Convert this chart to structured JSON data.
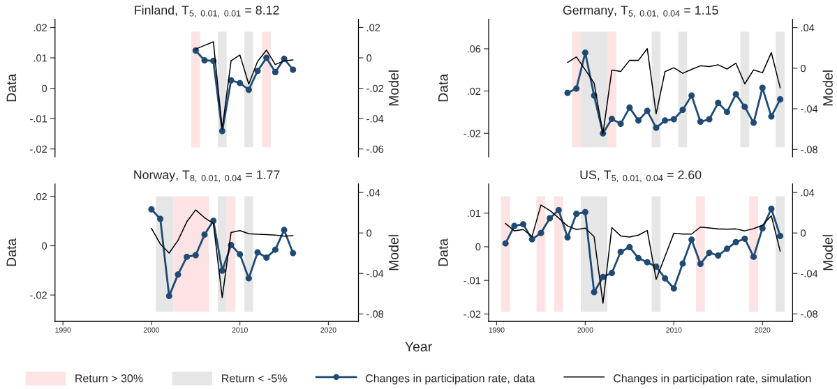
{
  "chart_data": [
    {
      "type": "line",
      "title": "Finland, T$_{5, 0.01, 0.01}$ = 8.12",
      "ylabel": "Data",
      "y2label": "Model",
      "tick_labels": "y",
      "legend": "bottom",
      "x": [
        2005,
        2006,
        2007,
        2008,
        2009,
        2010,
        2011,
        2012,
        2013,
        2014,
        2015,
        2016
      ],
      "series": [
        {
          "name": "Changes in participation rate, data",
          "color": "#1f4a73",
          "marker": "circle",
          "values": [
            0.0124,
            0.0092,
            0.009,
            -0.0141,
            0.0026,
            0.0017,
            -0.0005,
            0.0057,
            0.01,
            0.0053,
            0.0097,
            0.0061
          ]
        },
        {
          "name": "Changes in participation rate, simulation",
          "color": "#000000",
          "marker": "none",
          "axis": "y2",
          "values": [
            0.0058,
            0.0082,
            0.0106,
            -0.0469,
            -0.0019,
            0.0019,
            -0.0173,
            -0.0023,
            0.0051,
            -0.0044,
            -0.0019,
            -0.0014
          ]
        }
      ],
      "xlim": [
        1989.1,
        2023.4
      ],
      "xticks": [
        1990,
        2000,
        2010,
        2020
      ],
      "ylim": [
        -0.0226,
        0.0227
      ],
      "yticks": [
        {
          "value": 0.02,
          "label": ".02"
        },
        {
          "value": 0.01,
          "label": ".01"
        },
        0,
        {
          "value": -0.01,
          "label": "-.01"
        },
        {
          "value": -0.02,
          "label": "-.02"
        }
      ],
      "y2lim": [
        -0.0652,
        0.0254
      ],
      "y2ticks": [
        {
          "value": 0.02,
          "label": ".02"
        },
        0,
        {
          "value": -0.02,
          "label": "-.02"
        },
        {
          "value": -0.04,
          "label": "-.04"
        },
        {
          "value": -0.06,
          "label": "-.06"
        }
      ],
      "bands": [
        {
          "axis": "x",
          "from": 2004.5,
          "to": 2005.5,
          "label": "Return > 30%",
          "color": "#fde3e3"
        },
        {
          "axis": "x",
          "from": 2007.5,
          "to": 2008.5,
          "label": "Return < -5%",
          "color": "#e6e6e6"
        },
        {
          "axis": "x",
          "from": 2010.5,
          "to": 2011.5,
          "color": "#e6e6e6"
        },
        {
          "axis": "x",
          "from": 2012.5,
          "to": 2013.5,
          "color": "#fde3e3"
        }
      ]
    },
    {
      "type": "line",
      "title": "Germany, T$_{5, 0.01, 0.04}$ = 1.15",
      "ylabel": "Data",
      "y2label": "Model",
      "tick_labels": "y",
      "x": [
        1998,
        1999,
        2000,
        2001,
        2002,
        2003,
        2004,
        2005,
        2006,
        2007,
        2008,
        2009,
        2010,
        2011,
        2012,
        2013,
        2014,
        2015,
        2016,
        2017,
        2018,
        2019,
        2020,
        2021,
        2022
      ],
      "series": [
        {
          "color": "#1f4a73",
          "marker": "circle",
          "values": [
            0.0182,
            0.0223,
            0.0563,
            0.0157,
            -0.0201,
            -0.0064,
            -0.011,
            0.0043,
            -0.0079,
            0.0012,
            -0.0148,
            -0.0079,
            -0.0067,
            0.0022,
            0.0157,
            -0.009,
            -0.0067,
            0.0088,
            0.0002,
            0.017,
            0.005,
            -0.01,
            0.023,
            -0.0041,
            0.0121
          ]
        },
        {
          "color": "#000000",
          "marker": "none",
          "axis": "y2",
          "values": [
            0.0056,
            0.0111,
            -0.0016,
            -0.0146,
            -0.0644,
            -0.0019,
            -0.0032,
            0.0077,
            0.0077,
            0.0193,
            -0.045,
            -0.0034,
            0.0005,
            -0.005,
            -0.0011,
            0.0024,
            0.0016,
            0.0034,
            -0.0008,
            0.005,
            -0.0154,
            -0.0016,
            -0.0045,
            0.0154,
            -0.0193
          ]
        }
      ],
      "xlim": [
        1989.1,
        2023.4
      ],
      "xticks": [
        1990,
        2000,
        2010,
        2020
      ],
      "ylim": [
        -0.0423,
        0.0879
      ],
      "yticks": [
        {
          "value": 0.06,
          "label": ".06"
        },
        {
          "value": 0.02,
          "label": ".02"
        },
        {
          "value": -0.02,
          "label": "-.02"
        }
      ],
      "y2lim": [
        -0.0874,
        0.0482
      ],
      "y2ticks": [
        {
          "value": 0.04,
          "label": ".04"
        },
        0,
        {
          "value": -0.04,
          "label": "-.04"
        },
        {
          "value": -0.08,
          "label": "-.08"
        }
      ],
      "bands": [
        {
          "axis": "x",
          "from": 1998.5,
          "to": 1999.5,
          "color": "#fde3e3"
        },
        {
          "axis": "x",
          "from": 1999.5,
          "to": 2002.5,
          "color": "#e6e6e6"
        },
        {
          "axis": "x",
          "from": 2002.5,
          "to": 2003.5,
          "color": "#fde3e3"
        },
        {
          "axis": "x",
          "from": 2007.5,
          "to": 2008.5,
          "color": "#e6e6e6"
        },
        {
          "axis": "x",
          "from": 2010.5,
          "to": 2011.5,
          "color": "#e6e6e6"
        },
        {
          "axis": "x",
          "from": 2017.5,
          "to": 2018.5,
          "color": "#e6e6e6"
        },
        {
          "axis": "x",
          "from": 2021.5,
          "to": 2022.5,
          "color": "#e6e6e6"
        }
      ]
    },
    {
      "type": "line",
      "title": "Norway, T$_{8, 0.01, 0.04}$ = 1.77",
      "ylabel": "Data",
      "y2label": "Model",
      "x": [
        2000,
        2001,
        2002,
        2003,
        2004,
        2005,
        2006,
        2007,
        2008,
        2009,
        2010,
        2011,
        2012,
        2013,
        2014,
        2015,
        2016
      ],
      "series": [
        {
          "color": "#1f4a73",
          "marker": "circle",
          "values": [
            0.0148,
            0.0109,
            -0.0204,
            -0.0117,
            -0.0045,
            -0.0038,
            0.0045,
            0.0101,
            -0.0101,
            0.0003,
            -0.0035,
            -0.0132,
            -0.0027,
            -0.0048,
            -0.0016,
            0.0064,
            -0.003
          ]
        },
        {
          "color": "#000000",
          "marker": "none",
          "axis": "y2",
          "values": [
            0.0045,
            -0.0109,
            -0.0199,
            -0.0074,
            0.0111,
            0.0228,
            0.0151,
            0.0093,
            -0.0639,
            0.0005,
            0.0024,
            -0.0008,
            -0.0013,
            -0.0016,
            -0.0021,
            -0.0032,
            -0.0026
          ]
        }
      ],
      "xlim": [
        1989.1,
        2023.4
      ],
      "xticks": [
        1990,
        2000,
        2010,
        2020
      ],
      "ylim": [
        -0.0307,
        0.0251
      ],
      "yticks": [
        {
          "value": 0.02,
          "label": ".02"
        },
        0,
        {
          "value": -0.02,
          "label": "-.02"
        }
      ],
      "y2lim": [
        -0.0874,
        0.0485
      ],
      "y2ticks": [
        {
          "value": 0.04,
          "label": ".04"
        },
        0,
        {
          "value": -0.04,
          "label": "-.04"
        },
        {
          "value": -0.08,
          "label": "-.08"
        }
      ],
      "bands": [
        {
          "axis": "x",
          "from": 2000.5,
          "to": 2002.5,
          "color": "#e6e6e6"
        },
        {
          "axis": "x",
          "from": 2002.5,
          "to": 2006.5,
          "color": "#fde3e3"
        },
        {
          "axis": "x",
          "from": 2007.5,
          "to": 2008.5,
          "color": "#e6e6e6"
        },
        {
          "axis": "x",
          "from": 2008.5,
          "to": 2009.5,
          "color": "#fde3e3"
        },
        {
          "axis": "x",
          "from": 2010.5,
          "to": 2011.5,
          "color": "#e6e6e6"
        }
      ]
    },
    {
      "type": "line",
      "title": "US, T$_{5, 0.01, 0.04}$ = 2.60",
      "ylabel": "Data",
      "y2label": "Model",
      "xlabel": "Year",
      "x": [
        1991,
        1992,
        1993,
        1994,
        1995,
        1996,
        1997,
        1998,
        1999,
        2000,
        2001,
        2002,
        2003,
        2004,
        2005,
        2006,
        2007,
        2008,
        2009,
        2010,
        2011,
        2012,
        2013,
        2014,
        2015,
        2016,
        2017,
        2018,
        2019,
        2020,
        2021,
        2022
      ],
      "series": [
        {
          "color": "#1f4a73",
          "marker": "circle",
          "values": [
            0.001,
            0.0062,
            0.0067,
            0.0022,
            0.0041,
            0.0085,
            0.0109,
            0.0028,
            0.0098,
            0.0103,
            -0.0135,
            -0.009,
            -0.0078,
            -0.0015,
            -0.0001,
            -0.0034,
            -0.0046,
            -0.0059,
            -0.0094,
            -0.0124,
            -0.005,
            0.0021,
            -0.0051,
            -0.0018,
            -0.0026,
            -0.0006,
            0.0014,
            0.0024,
            -0.003,
            0.0055,
            0.0113,
            0.0032
          ]
        },
        {
          "color": "#000000",
          "marker": "none",
          "axis": "y2",
          "values": [
            0.0093,
            0.0021,
            0.0034,
            -0.0034,
            0.0276,
            0.0223,
            0.0148,
            0.0069,
            0.0034,
            0.0048,
            -0.0037,
            -0.0694,
            0.0053,
            -0.0029,
            -0.004,
            -0.0021,
            0.0024,
            -0.0458,
            -0.0233,
            -0.0003,
            -0.0011,
            -0.0011,
            0.0058,
            0.005,
            0.004,
            0.0037,
            0.004,
            0.0021,
            0.0042,
            0.0077,
            0.017,
            -0.018
          ]
        }
      ],
      "xlim": [
        1989.1,
        2023.4
      ],
      "xticks": [
        1990,
        2000,
        2010,
        2020
      ],
      "ylim": [
        -0.0222,
        0.0187
      ],
      "yticks": [
        {
          "value": 0.01,
          "label": ".01"
        },
        0,
        {
          "value": -0.01,
          "label": "-.01"
        },
        {
          "value": -0.02,
          "label": "-.02"
        }
      ],
      "y2lim": [
        -0.0874,
        0.0485
      ],
      "y2ticks": [
        {
          "value": 0.04,
          "label": ".04"
        },
        0,
        {
          "value": -0.04,
          "label": "-.04"
        },
        {
          "value": -0.08,
          "label": "-.08"
        }
      ],
      "bands": [
        {
          "axis": "x",
          "from": 1990.5,
          "to": 1991.5,
          "color": "#fde3e3"
        },
        {
          "axis": "x",
          "from": 1994.5,
          "to": 1995.5,
          "color": "#fde3e3"
        },
        {
          "axis": "x",
          "from": 1996.5,
          "to": 1997.5,
          "color": "#fde3e3"
        },
        {
          "axis": "x",
          "from": 1999.5,
          "to": 2002.5,
          "color": "#e6e6e6"
        },
        {
          "axis": "x",
          "from": 2007.5,
          "to": 2008.5,
          "color": "#e6e6e6"
        },
        {
          "axis": "x",
          "from": 2012.5,
          "to": 2013.5,
          "color": "#fde3e3"
        },
        {
          "axis": "x",
          "from": 2018.5,
          "to": 2019.5,
          "color": "#fde3e3"
        },
        {
          "axis": "x",
          "from": 2021.5,
          "to": 2022.5,
          "color": "#e6e6e6"
        }
      ]
    }
  ]
}
